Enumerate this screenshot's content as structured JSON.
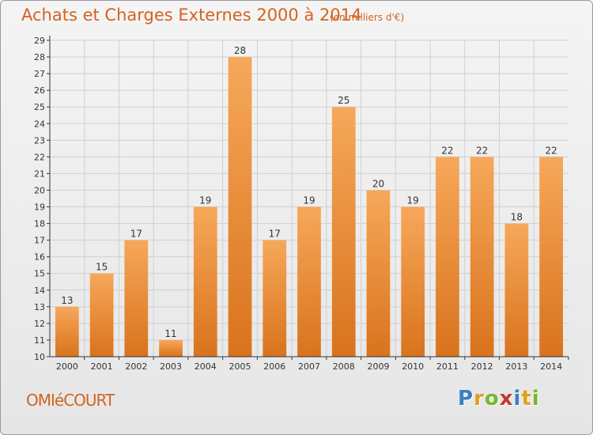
{
  "header": {
    "title": "Achats et Charges Externes 2000 à 2014",
    "subtitle": "(en milliers d'€)"
  },
  "footer": {
    "commune": "OMIéCOURT",
    "logo": {
      "letters": [
        "P",
        "r",
        "o",
        "x",
        "i",
        "t",
        "i"
      ],
      "colors": [
        "#3a7fc1",
        "#e0a11a",
        "#7ab52f",
        "#c0392b",
        "#3a7fc1",
        "#e0a11a",
        "#7ab52f"
      ]
    }
  },
  "colors": {
    "bar_light": "#f6a85a",
    "bar_dark": "#d9731d",
    "axis": "#333333",
    "grid": "#d0d0d0",
    "text": "#333333"
  },
  "chart_data": {
    "type": "bar",
    "categories": [
      "2000",
      "2001",
      "2002",
      "2003",
      "2004",
      "2005",
      "2006",
      "2007",
      "2008",
      "2009",
      "2010",
      "2011",
      "2012",
      "2013",
      "2014"
    ],
    "values": [
      13,
      15,
      17,
      11,
      19,
      28,
      17,
      19,
      25,
      20,
      19,
      22,
      22,
      18,
      22
    ],
    "ylim": [
      10,
      29
    ],
    "yticks": [
      10,
      11,
      12,
      13,
      14,
      15,
      16,
      17,
      18,
      19,
      20,
      21,
      22,
      23,
      24,
      25,
      26,
      27,
      28,
      29
    ],
    "grid": true,
    "data_labels": true
  }
}
